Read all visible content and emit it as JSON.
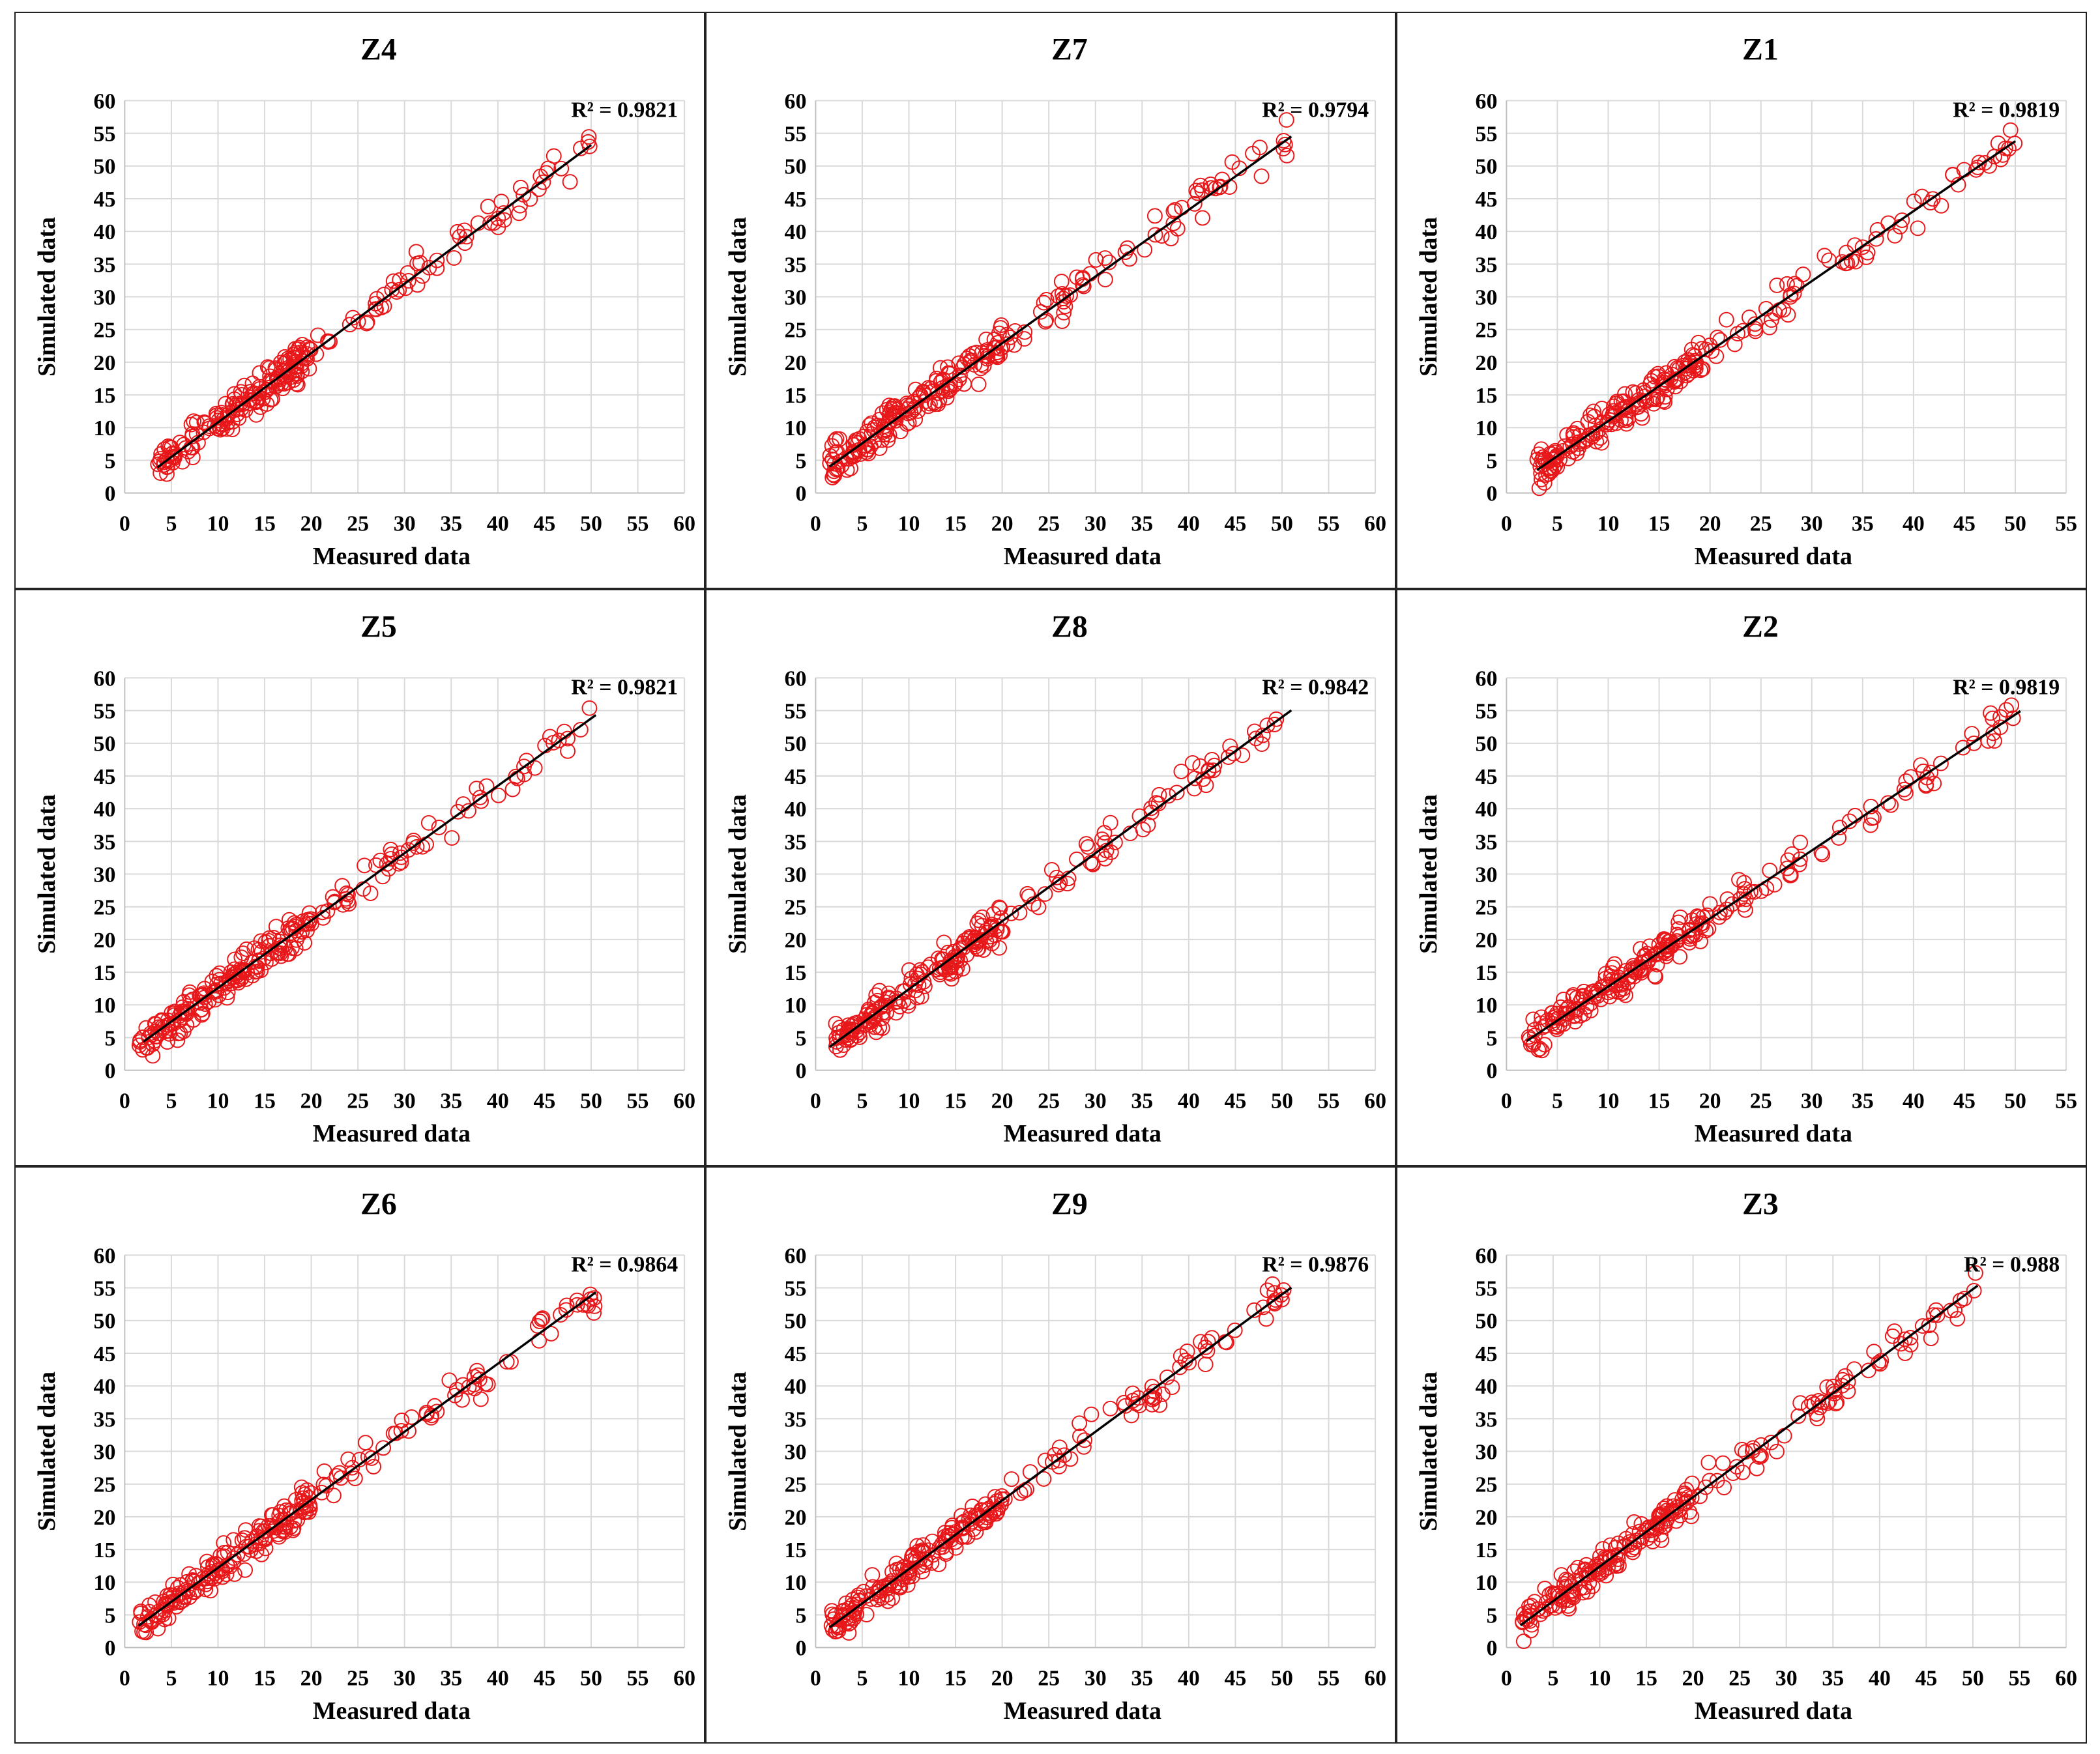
{
  "colors": {
    "point": "#e8181a",
    "trendline": "#000000",
    "grid": "#d9d9d9",
    "border": "#222222"
  },
  "chart_data": [
    {
      "type": "scatter",
      "title": "Z4",
      "xlabel": "Measured data",
      "ylabel": "Simulated data",
      "xlim": [
        0,
        60
      ],
      "ylim": [
        0,
        60
      ],
      "xticks": [
        0,
        5,
        10,
        15,
        20,
        25,
        30,
        35,
        40,
        45,
        50,
        55,
        60
      ],
      "yticks": [
        0,
        5,
        10,
        15,
        20,
        25,
        30,
        35,
        40,
        45,
        50,
        55,
        60
      ],
      "r2_label": "R² = 0.9821",
      "xrange": [
        3.5,
        50
      ],
      "trendline": {
        "slope": 1.06,
        "intercept": 0.2,
        "x": [
          3.5,
          50
        ]
      },
      "seed": 4
    },
    {
      "type": "scatter",
      "title": "Z7",
      "xlabel": "Measured data",
      "ylabel": "Simulated data",
      "xlim": [
        0,
        60
      ],
      "ylim": [
        0,
        60
      ],
      "xticks": [
        0,
        5,
        10,
        15,
        20,
        25,
        30,
        35,
        40,
        45,
        50,
        55,
        60
      ],
      "yticks": [
        0,
        5,
        10,
        15,
        20,
        25,
        30,
        35,
        40,
        45,
        50,
        55,
        60
      ],
      "r2_label": "R² = 0.9794",
      "xrange": [
        1.5,
        51
      ],
      "trendline": {
        "slope": 1.02,
        "intercept": 2.5,
        "x": [
          1.5,
          51
        ]
      },
      "seed": 7
    },
    {
      "type": "scatter",
      "title": "Z1",
      "xlabel": "Measured data",
      "ylabel": "Simulated data",
      "xlim": [
        0,
        55
      ],
      "ylim": [
        0,
        60
      ],
      "xticks": [
        0,
        5,
        10,
        15,
        20,
        25,
        30,
        35,
        40,
        45,
        50,
        55
      ],
      "yticks": [
        0,
        5,
        10,
        15,
        20,
        25,
        30,
        35,
        40,
        45,
        50,
        55,
        60
      ],
      "r2_label": "R² = 0.9819",
      "xrange": [
        3,
        50
      ],
      "trendline": {
        "slope": 1.07,
        "intercept": 0.3,
        "x": [
          3,
          50
        ]
      },
      "seed": 1
    },
    {
      "type": "scatter",
      "title": "Z5",
      "xlabel": "Measured data",
      "ylabel": "Simulated data",
      "xlim": [
        0,
        60
      ],
      "ylim": [
        0,
        60
      ],
      "xticks": [
        0,
        5,
        10,
        15,
        20,
        25,
        30,
        35,
        40,
        45,
        50,
        55,
        60
      ],
      "yticks": [
        0,
        5,
        10,
        15,
        20,
        25,
        30,
        35,
        40,
        45,
        50,
        55,
        60
      ],
      "r2_label": "R² = 0.9821",
      "xrange": [
        1.5,
        50
      ],
      "trendline": {
        "slope": 1.03,
        "intercept": 2.3,
        "x": [
          2,
          50.5
        ]
      },
      "seed": 5
    },
    {
      "type": "scatter",
      "title": "Z8",
      "xlabel": "Measured data",
      "ylabel": "Simulated data",
      "xlim": [
        0,
        60
      ],
      "ylim": [
        0,
        60
      ],
      "xticks": [
        0,
        5,
        10,
        15,
        20,
        25,
        30,
        35,
        40,
        45,
        50,
        55,
        60
      ],
      "yticks": [
        0,
        5,
        10,
        15,
        20,
        25,
        30,
        35,
        40,
        45,
        50,
        55,
        60
      ],
      "r2_label": "R² = 0.9842",
      "xrange": [
        1.5,
        50.5
      ],
      "trendline": {
        "slope": 1.04,
        "intercept": 2.0,
        "x": [
          1.5,
          51
        ]
      },
      "seed": 8
    },
    {
      "type": "scatter",
      "title": "Z2",
      "xlabel": "Measured data",
      "ylabel": "Simulated data",
      "xlim": [
        0,
        55
      ],
      "ylim": [
        0,
        60
      ],
      "xticks": [
        0,
        5,
        10,
        15,
        20,
        25,
        30,
        35,
        40,
        45,
        50,
        55
      ],
      "yticks": [
        0,
        5,
        10,
        15,
        20,
        25,
        30,
        35,
        40,
        45,
        50,
        55,
        60
      ],
      "r2_label": "R² = 0.9819",
      "xrange": [
        2,
        50
      ],
      "trendline": {
        "slope": 1.04,
        "intercept": 2.4,
        "x": [
          2,
          50.5
        ]
      },
      "seed": 2
    },
    {
      "type": "scatter",
      "title": "Z6",
      "xlabel": "Measured data",
      "ylabel": "Simulated data",
      "xlim": [
        0,
        60
      ],
      "ylim": [
        0,
        60
      ],
      "xticks": [
        0,
        5,
        10,
        15,
        20,
        25,
        30,
        35,
        40,
        45,
        50,
        55,
        60
      ],
      "yticks": [
        0,
        5,
        10,
        15,
        20,
        25,
        30,
        35,
        40,
        45,
        50,
        55,
        60
      ],
      "r2_label": "R² = 0.9864",
      "xrange": [
        1.5,
        50.5
      ],
      "trendline": {
        "slope": 1.04,
        "intercept": 1.8,
        "x": [
          1.5,
          50.5
        ]
      },
      "seed": 6
    },
    {
      "type": "scatter",
      "title": "Z9",
      "xlabel": "Measured data",
      "ylabel": "Simulated data",
      "xlim": [
        0,
        60
      ],
      "ylim": [
        0,
        60
      ],
      "xticks": [
        0,
        5,
        10,
        15,
        20,
        25,
        30,
        35,
        40,
        45,
        50,
        55,
        60
      ],
      "yticks": [
        0,
        5,
        10,
        15,
        20,
        25,
        30,
        35,
        40,
        45,
        50,
        55,
        60
      ],
      "r2_label": "R² = 0.9876",
      "xrange": [
        1.5,
        51
      ],
      "trendline": {
        "slope": 1.05,
        "intercept": 1.5,
        "x": [
          1.5,
          51
        ]
      },
      "seed": 9
    },
    {
      "type": "scatter",
      "title": "Z3",
      "xlabel": "Measured data",
      "ylabel": "Simulated data",
      "xlim": [
        0,
        60
      ],
      "ylim": [
        0,
        60
      ],
      "xticks": [
        0,
        5,
        10,
        15,
        20,
        25,
        30,
        35,
        40,
        45,
        50,
        55,
        60
      ],
      "yticks": [
        0,
        5,
        10,
        15,
        20,
        25,
        30,
        35,
        40,
        45,
        50,
        55,
        60
      ],
      "r2_label": "R² = 0.988",
      "xrange": [
        1.5,
        50.5
      ],
      "trendline": {
        "slope": 1.06,
        "intercept": 1.8,
        "x": [
          1.5,
          50.5
        ]
      },
      "seed": 3
    }
  ]
}
